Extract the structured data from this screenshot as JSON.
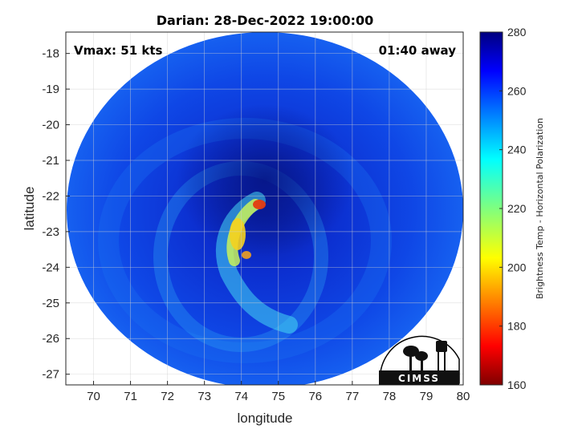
{
  "chart_data": {
    "type": "heatmap",
    "title": "Darian: 28-Dec-2022 19:00:00",
    "xlabel": "longitude",
    "ylabel": "latitude",
    "xlim": [
      69.25,
      80
    ],
    "ylim": [
      -27.3,
      -17.4
    ],
    "xticks": [
      "70",
      "71",
      "72",
      "73",
      "74",
      "75",
      "76",
      "77",
      "78",
      "79",
      "80"
    ],
    "yticks": [
      "-18",
      "-19",
      "-20",
      "-21",
      "-22",
      "-23",
      "-24",
      "-25",
      "-26",
      "-27"
    ],
    "grid": true,
    "annotations": {
      "vmax": "Vmax: 51 kts",
      "time_offset": "01:40 away"
    },
    "colorbar": {
      "label": "Brightness Temp - Horizontal Polarization",
      "range": [
        160,
        280
      ],
      "ticks": [
        "280",
        "260",
        "240",
        "220",
        "200",
        "180",
        "160"
      ],
      "colormap": "jet"
    },
    "storm_center": {
      "lon": 74.6,
      "lat": -21.9
    },
    "swath": {
      "center_lon": 74.5,
      "center_lat": -22.4
    },
    "logo_text": "CIMSS"
  }
}
